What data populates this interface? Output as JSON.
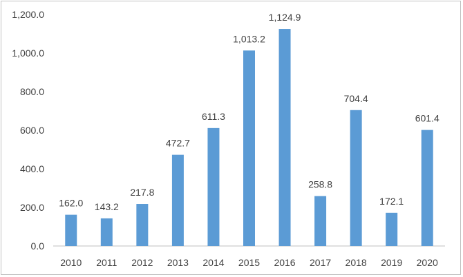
{
  "chart_data": {
    "type": "bar",
    "categories": [
      "2010",
      "2011",
      "2012",
      "2013",
      "2014",
      "2015",
      "2016",
      "2017",
      "2018",
      "2019",
      "2020"
    ],
    "values": [
      162.0,
      143.2,
      217.8,
      472.7,
      611.3,
      1013.2,
      1124.9,
      258.8,
      704.4,
      172.1,
      601.4
    ],
    "data_labels": [
      "162.0",
      "143.2",
      "217.8",
      "472.7",
      "611.3",
      "1,013.2",
      "1,124.9",
      "258.8",
      "704.4",
      "172.1",
      "601.4"
    ],
    "y_ticks": [
      "0.0",
      "200.0",
      "400.0",
      "600.0",
      "800.0",
      "1,000.0",
      "1,200.0"
    ],
    "ylim": [
      0,
      1200
    ],
    "title": "",
    "xlabel": "",
    "ylabel": "",
    "grid": false,
    "legend": "none",
    "bar_color": "#5b9bd5"
  }
}
